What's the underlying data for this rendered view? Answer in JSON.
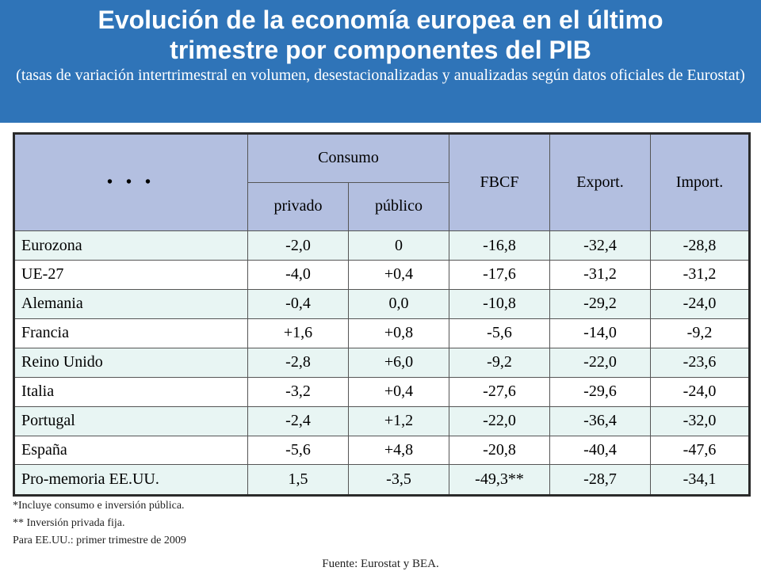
{
  "title": {
    "main_line1": "Evolución de la economía europea en el último",
    "main_line2": "trimestre por componentes del PIB",
    "subtitle": "(tasas de variación intertrimestral en volumen, desestacionalizadas y anualizadas según datos oficiales de Eurostat)"
  },
  "table": {
    "corner": "• • •",
    "headers": {
      "consumo": "Consumo",
      "privado": "privado",
      "publico": "público",
      "fbcf": "FBCF",
      "export": "Export.",
      "import": "Import."
    },
    "rows": [
      {
        "country": "Eurozona",
        "privado": "-2,0",
        "publico": "0",
        "fbcf": "-16,8",
        "export": "-32,4",
        "import": "-28,8"
      },
      {
        "country": "UE-27",
        "privado": "-4,0",
        "publico": "+0,4",
        "fbcf": "-17,6",
        "export": "-31,2",
        "import": "-31,2"
      },
      {
        "country": "Alemania",
        "privado": "-0,4",
        "publico": "0,0",
        "fbcf": "-10,8",
        "export": "-29,2",
        "import": "-24,0"
      },
      {
        "country": "Francia",
        "privado": "+1,6",
        "publico": "+0,8",
        "fbcf": "-5,6",
        "export": "-14,0",
        "import": "-9,2"
      },
      {
        "country": "Reino Unido",
        "privado": "-2,8",
        "publico": "+6,0",
        "fbcf": "-9,2",
        "export": "-22,0",
        "import": "-23,6"
      },
      {
        "country": "Italia",
        "privado": "-3,2",
        "publico": "+0,4",
        "fbcf": "-27,6",
        "export": "-29,6",
        "import": "-24,0"
      },
      {
        "country": "Portugal",
        "privado": "-2,4",
        "publico": "+1,2",
        "fbcf": "-22,0",
        "export": "-36,4",
        "import": "-32,0"
      },
      {
        "country": "España",
        "privado": "-5,6",
        "publico": "+4,8",
        "fbcf": "-20,8",
        "export": "-40,4",
        "import": "-47,6"
      },
      {
        "country": "Pro-memoria EE.UU.",
        "privado": "1,5",
        "publico": "-3,5",
        "fbcf": "-49,3**",
        "export": "-28,7",
        "import": "-34,1"
      }
    ]
  },
  "notes": {
    "note1": "*Incluye consumo e inversión pública.",
    "note2": "** Inversión privada fija.",
    "note3": "Para EE.UU.: primer trimestre de 2009"
  },
  "source": "Fuente: Eurostat y BEA.",
  "colors": {
    "title_band": "#2f74b8",
    "header_bg": "#b3bfe0",
    "row_light": "#e8f5f3"
  }
}
